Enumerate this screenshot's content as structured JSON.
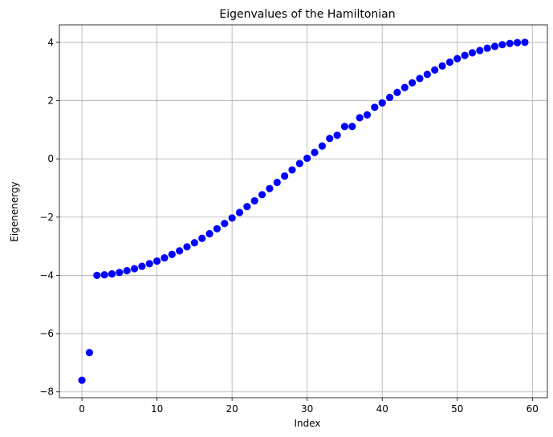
{
  "chart_data": {
    "type": "scatter",
    "title": "Eigenvalues of the Hamiltonian",
    "xlabel": "Index",
    "ylabel": "Eigenenergy",
    "xlim": [
      -3,
      62
    ],
    "ylim": [
      -8.2,
      4.6
    ],
    "xticks": [
      0,
      10,
      20,
      30,
      40,
      50,
      60
    ],
    "yticks": [
      -8,
      -6,
      -4,
      -2,
      0,
      2,
      4
    ],
    "xtick_labels": [
      "0",
      "10",
      "20",
      "30",
      "40",
      "50",
      "60"
    ],
    "ytick_labels": [
      "−8",
      "−6",
      "−4",
      "−2",
      "0",
      "2",
      "4"
    ],
    "grid": true,
    "marker_color": "#0000ff",
    "series": [
      {
        "x": [
          0,
          1,
          2,
          3,
          4,
          5,
          6,
          7,
          8,
          9,
          10,
          11,
          12,
          13,
          14,
          15,
          16,
          17,
          18,
          19,
          20,
          21,
          22,
          23,
          24,
          25,
          26,
          27,
          28,
          29,
          30,
          31,
          32,
          33,
          34,
          35,
          36,
          37,
          38,
          39,
          40,
          41,
          42,
          43,
          44,
          45,
          46,
          47,
          48,
          49,
          50,
          51,
          52,
          53,
          54,
          55,
          56,
          57,
          58,
          59
        ],
        "values": [
          -7.6,
          -6.65,
          -4.0,
          -3.98,
          -3.95,
          -3.9,
          -3.84,
          -3.77,
          -3.69,
          -3.6,
          -3.51,
          -3.4,
          -3.28,
          -3.16,
          -3.02,
          -2.88,
          -2.73,
          -2.57,
          -2.4,
          -2.22,
          -2.03,
          -1.84,
          -1.64,
          -1.44,
          -1.23,
          -1.02,
          -0.81,
          -0.59,
          -0.38,
          -0.16,
          0.02,
          0.22,
          0.44,
          0.7,
          0.81,
          1.11,
          1.11,
          1.41,
          1.51,
          1.77,
          1.92,
          2.11,
          2.28,
          2.45,
          2.61,
          2.76,
          2.9,
          3.05,
          3.19,
          3.32,
          3.44,
          3.55,
          3.64,
          3.72,
          3.8,
          3.86,
          3.92,
          3.96,
          3.99,
          4.0
        ]
      }
    ]
  }
}
